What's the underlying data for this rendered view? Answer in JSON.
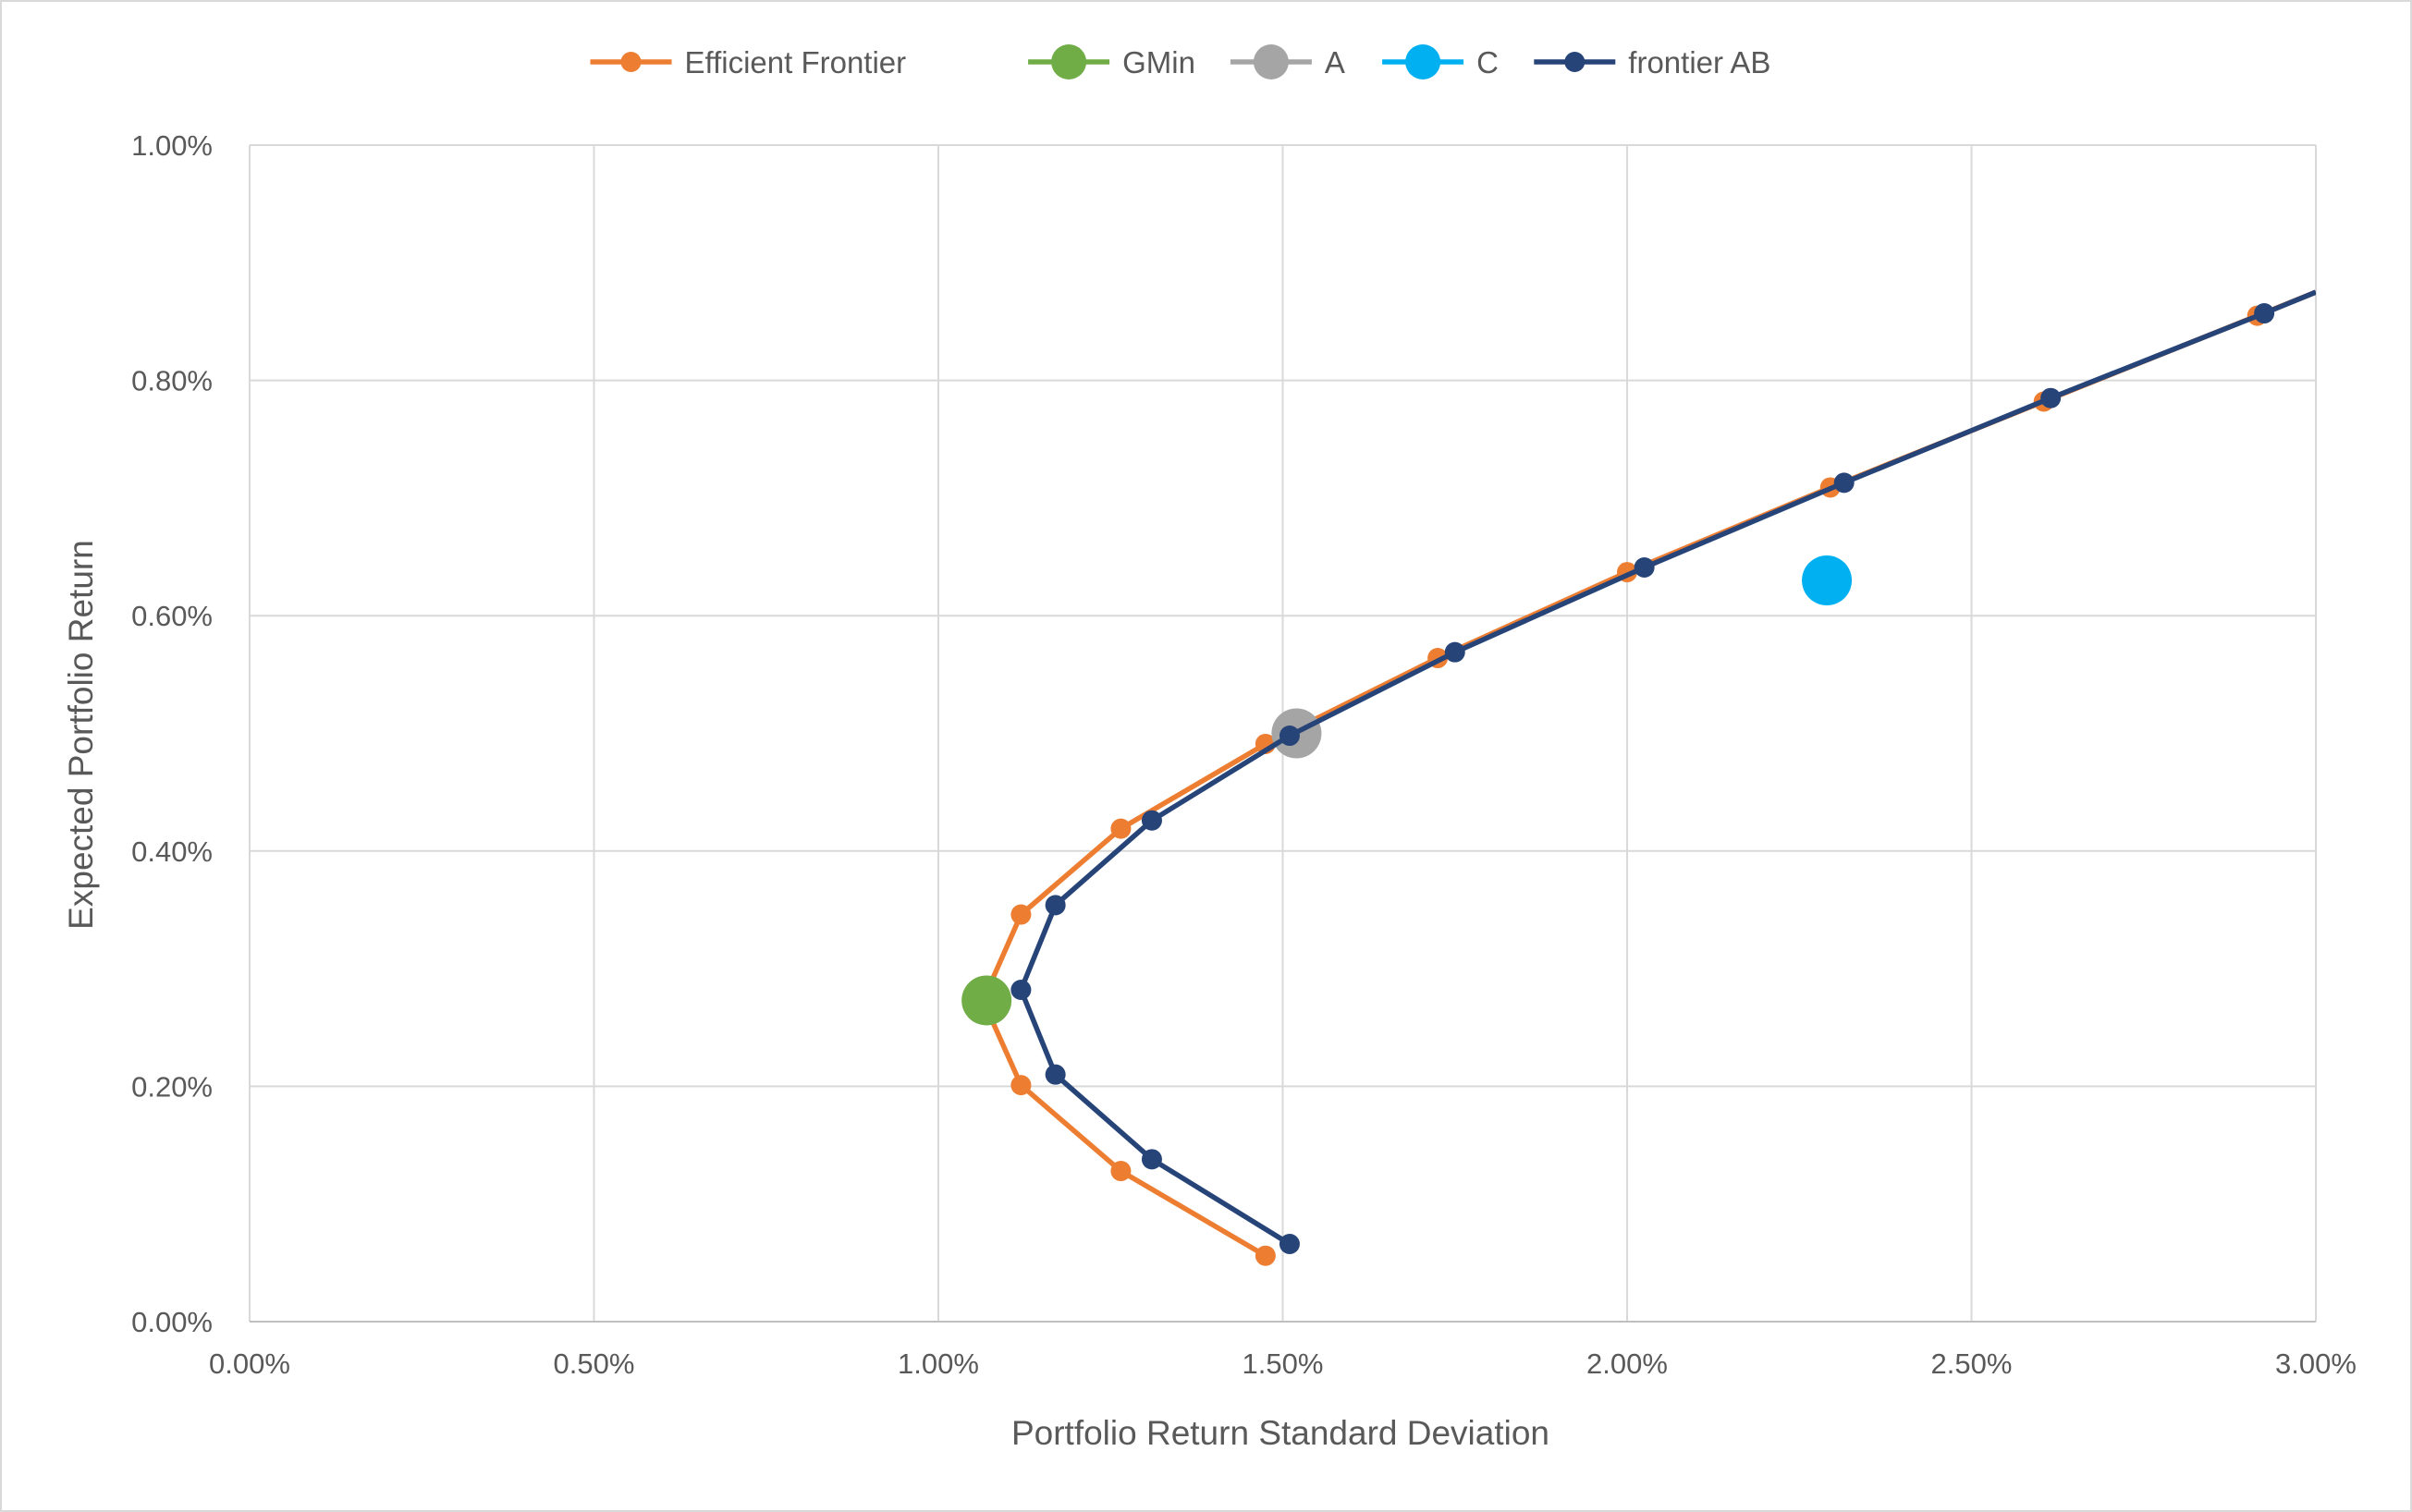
{
  "chart_data": {
    "type": "scatter",
    "title": "",
    "xlabel": "Portfolio Return Standard Deviation",
    "ylabel": "Expected Portfolio Return",
    "xlim": [
      0,
      3.0
    ],
    "ylim": [
      0,
      1.0
    ],
    "x_ticks": [
      "0.00%",
      "0.50%",
      "1.00%",
      "1.50%",
      "2.00%",
      "2.50%",
      "3.00%"
    ],
    "y_ticks": [
      "0.00%",
      "0.20%",
      "0.40%",
      "0.60%",
      "0.80%",
      "1.00%"
    ],
    "grid": true,
    "legend_position": "top",
    "series": [
      {
        "name": "Efficient Frontier",
        "color": "#ED7D31",
        "style": "line-markers",
        "points": [
          [
            1.475,
            0.056
          ],
          [
            1.265,
            0.128
          ],
          [
            1.12,
            0.201
          ],
          [
            1.065,
            0.273
          ],
          [
            1.12,
            0.346
          ],
          [
            1.265,
            0.419
          ],
          [
            1.475,
            0.491
          ],
          [
            1.725,
            0.564
          ],
          [
            2.0,
            0.637
          ],
          [
            2.295,
            0.709
          ],
          [
            2.605,
            0.782
          ],
          [
            2.915,
            0.855
          ],
          [
            3.0,
            0.875
          ]
        ]
      },
      {
        "name": "GMin",
        "color": "#70AD47",
        "style": "marker-large",
        "points": [
          [
            1.07,
            0.273
          ]
        ]
      },
      {
        "name": "A",
        "color": "#A5A5A5",
        "style": "marker-large",
        "points": [
          [
            1.52,
            0.5
          ]
        ]
      },
      {
        "name": "C",
        "color": "#00B0F0",
        "style": "marker-large",
        "points": [
          [
            2.29,
            0.63
          ]
        ]
      },
      {
        "name": "frontier AB",
        "color": "#264478",
        "style": "line-markers",
        "points": [
          [
            1.51,
            0.066
          ],
          [
            1.31,
            0.138
          ],
          [
            1.17,
            0.21
          ],
          [
            1.12,
            0.282
          ],
          [
            1.17,
            0.354
          ],
          [
            1.31,
            0.426
          ],
          [
            1.51,
            0.498
          ],
          [
            1.75,
            0.569
          ],
          [
            2.025,
            0.641
          ],
          [
            2.315,
            0.713
          ],
          [
            2.615,
            0.785
          ],
          [
            2.925,
            0.857
          ],
          [
            3.0,
            0.875
          ]
        ]
      }
    ]
  }
}
